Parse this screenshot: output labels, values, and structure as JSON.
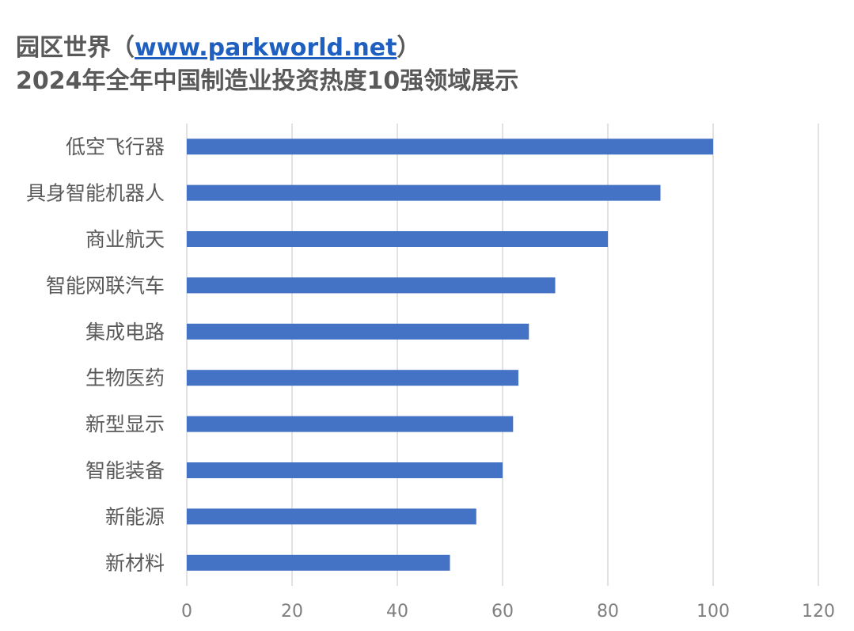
{
  "title": {
    "line1_prefix": "园区世界（",
    "line1_link": "www.parkworld.net",
    "line1_suffix": "）",
    "line2": "2024年全年中国制造业投资热度10强领域展示"
  },
  "chart_data": {
    "type": "bar",
    "orientation": "horizontal",
    "categories": [
      "低空飞行器",
      "具身智能机器人",
      "商业航天",
      "智能网联汽车",
      "集成电路",
      "生物医药",
      "新型显示",
      "智能装备",
      "新能源",
      "新材料"
    ],
    "values": [
      100,
      90,
      80,
      70,
      65,
      63,
      62,
      60,
      55,
      50
    ],
    "xlim": [
      0,
      120
    ],
    "xticks": [
      0,
      20,
      40,
      60,
      80,
      100,
      120
    ],
    "grid": true,
    "bar_color": "#4472c4",
    "xlabel": "",
    "ylabel": ""
  }
}
